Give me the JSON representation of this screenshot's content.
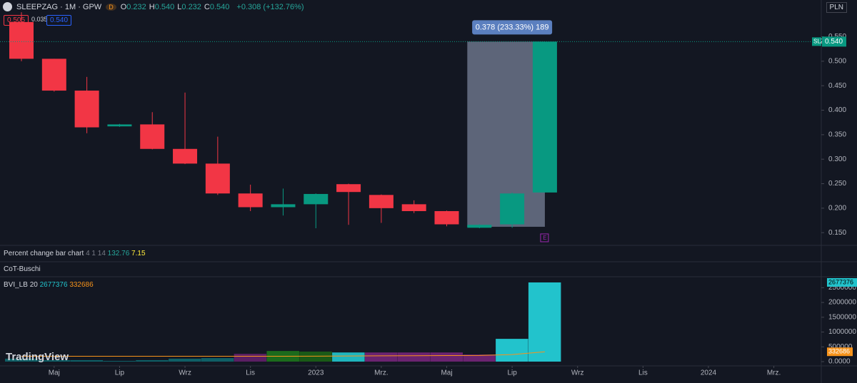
{
  "header": {
    "symbol": "SLEEPZAG · 1M · GPW",
    "badge": "D",
    "ohlc": [
      {
        "label": "O",
        "value": "0.232"
      },
      {
        "label": "H",
        "value": "0.540"
      },
      {
        "label": "L",
        "value": "0.232"
      },
      {
        "label": "C",
        "value": "0.540"
      }
    ],
    "change": "+0.308 (+132.76%)",
    "sell_price": "0.505",
    "spread": "0.035",
    "buy_price": "0.540",
    "currency": "PLN"
  },
  "indicators": [
    {
      "name": "Percent change bar chart",
      "params": "4 1 14",
      "values": [
        "132.76",
        "7.15"
      ]
    },
    {
      "name": "CoT-Buschi"
    }
  ],
  "logo": "TradingView",
  "chart_data": [
    {
      "type": "candlestick",
      "open": [
        0.58,
        0.505,
        0.44,
        0.367,
        0.371,
        0.321,
        0.291,
        0.23,
        0.202,
        0.208,
        0.249,
        0.227,
        0.208,
        0.194,
        0.16,
        0.167,
        0.232
      ],
      "high": [
        0.6,
        0.505,
        0.468,
        0.372,
        0.396,
        0.436,
        0.346,
        0.248,
        0.24,
        0.23,
        0.25,
        0.228,
        0.216,
        0.195,
        0.167,
        0.232,
        0.54
      ],
      "low": [
        0.5,
        0.438,
        0.353,
        0.366,
        0.32,
        0.29,
        0.227,
        0.194,
        0.185,
        0.159,
        0.166,
        0.17,
        0.19,
        0.163,
        0.159,
        0.16,
        0.232
      ],
      "close": [
        0.505,
        0.44,
        0.365,
        0.371,
        0.321,
        0.291,
        0.23,
        0.202,
        0.208,
        0.229,
        0.233,
        0.2,
        0.194,
        0.167,
        0.166,
        0.23,
        0.54
      ],
      "up_color": "#089981",
      "down_color": "#f23645",
      "ylim": [
        0.127,
        0.625
      ],
      "yticks": [
        {
          "value": 0.15,
          "label": "0.150"
        },
        {
          "value": 0.2,
          "label": "0.200"
        },
        {
          "value": 0.25,
          "label": "0.250"
        },
        {
          "value": 0.3,
          "label": "0.300"
        },
        {
          "value": 0.35,
          "label": "0.350"
        },
        {
          "value": 0.4,
          "label": "0.400"
        },
        {
          "value": 0.45,
          "label": "0.450"
        },
        {
          "value": 0.5,
          "label": "0.500"
        },
        {
          "value": 0.55,
          "label": "0.550"
        }
      ],
      "xlim": [
        -0.655,
        24.45
      ],
      "xticks": [
        {
          "value": 1,
          "label": "Maj"
        },
        {
          "value": 3,
          "label": "Lip"
        },
        {
          "value": 5,
          "label": "Wrz"
        },
        {
          "value": 7,
          "label": "Lis"
        },
        {
          "value": 9,
          "label": "2023"
        },
        {
          "value": 11,
          "label": "Mrz."
        },
        {
          "value": 13,
          "label": "Maj"
        },
        {
          "value": 15,
          "label": "Lip"
        },
        {
          "value": 17,
          "label": "Wrz"
        },
        {
          "value": 19,
          "label": "Lis"
        },
        {
          "value": 21,
          "label": "2024"
        },
        {
          "value": 23,
          "label": "Mrz."
        }
      ],
      "last_price": {
        "symbol": "SLZ",
        "label": "0.540"
      },
      "measure": {
        "label": "0.378 (233.33%) 189",
        "from": 0.162,
        "to": 0.54
      },
      "event": "E"
    },
    {
      "type": "bar",
      "title": "BVI_LB 20",
      "values": [
        100000,
        50000,
        50000,
        25000,
        50000,
        100000,
        120000,
        265000,
        360000,
        340000,
        310000,
        310000,
        310000,
        310000,
        240000,
        770000,
        2677376
      ],
      "colors": [
        "#0f5f66",
        "#0f5f66",
        "#0f5f66",
        "#0f5f66",
        "#0f5f66",
        "#0f5f66",
        "#0f5f66",
        "#5b1f63",
        "#1c6b1c",
        "#1a5a17",
        "#1fb5bd",
        "#6b2370",
        "#6b2370",
        "#6b2370",
        "#6b2370",
        "#22c3cc",
        "#22c3cc"
      ],
      "ma": {
        "color": "#f7931a",
        "values": [
          180000,
          180000,
          180000,
          180000,
          180000,
          180000,
          180000,
          180000,
          180000,
          185000,
          190000,
          195000,
          200000,
          205000,
          210000,
          240000,
          332686
        ]
      },
      "ylim": [
        -120000,
        2870000
      ],
      "yticks": [
        {
          "value": 0,
          "label": "0.0000"
        },
        500000,
        1000000,
        1500000,
        2000000,
        2500000
      ]
    }
  ]
}
